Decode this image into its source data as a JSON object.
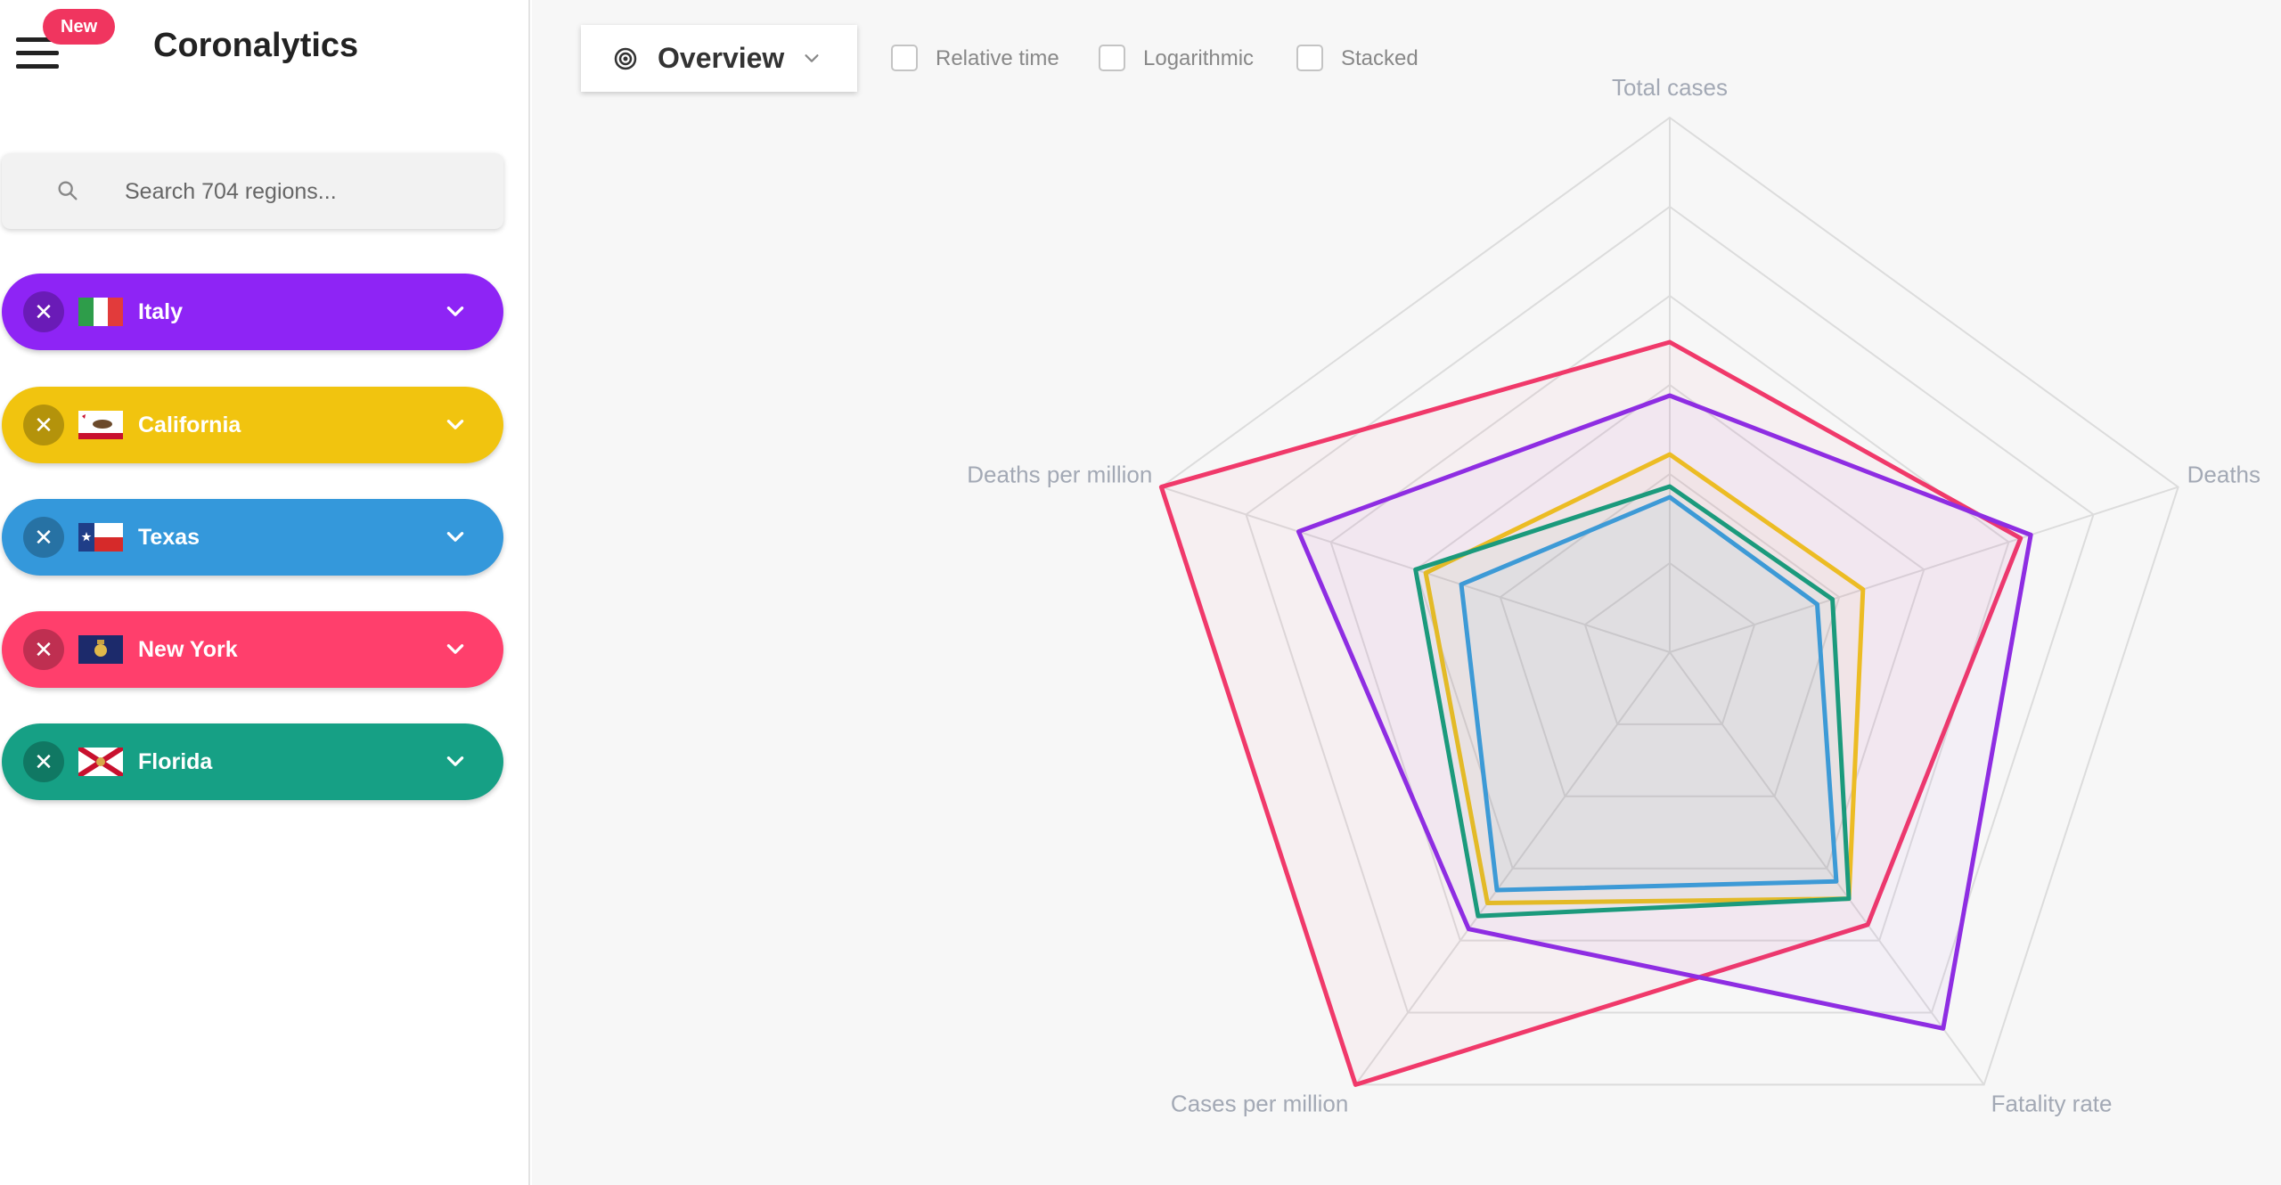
{
  "app": {
    "title": "Coronalytics",
    "new_badge": "New"
  },
  "search": {
    "placeholder": "Search 704 regions..."
  },
  "regions": [
    {
      "label": "Italy",
      "color": "#8e24f5",
      "flag": "italy-flag"
    },
    {
      "label": "California",
      "color": "#f1c40f",
      "flag": "california-flag"
    },
    {
      "label": "Texas",
      "color": "#3498db",
      "flag": "texas-flag"
    },
    {
      "label": "New York",
      "color": "#ff3f6c",
      "flag": "new-york-flag"
    },
    {
      "label": "Florida",
      "color": "#16a085",
      "flag": "florida-flag"
    }
  ],
  "toolbar": {
    "view": "Overview",
    "options": [
      {
        "label": "Relative time",
        "checked": false
      },
      {
        "label": "Logarithmic",
        "checked": false
      },
      {
        "label": "Stacked",
        "checked": false
      }
    ]
  },
  "chart_data": {
    "type": "radar",
    "axes": [
      "Total cases",
      "Deaths",
      "Fatality rate",
      "Cases per million",
      "Deaths per million"
    ],
    "grid_levels": 6,
    "range": [
      0,
      1
    ],
    "series": [
      {
        "name": "New York",
        "color": "#f0396a",
        "values": [
          0.58,
          0.69,
          0.63,
          1.0,
          1.0
        ]
      },
      {
        "name": "Italy",
        "color": "#8e2de2",
        "values": [
          0.48,
          0.71,
          0.87,
          0.64,
          0.73
        ]
      },
      {
        "name": "California",
        "color": "#ecbc24",
        "values": [
          0.37,
          0.38,
          0.57,
          0.58,
          0.48
        ]
      },
      {
        "name": "Florida",
        "color": "#1b9a7c",
        "values": [
          0.31,
          0.32,
          0.57,
          0.61,
          0.5
        ]
      },
      {
        "name": "Texas",
        "color": "#3d9ad6",
        "values": [
          0.29,
          0.29,
          0.53,
          0.55,
          0.41
        ]
      }
    ]
  }
}
